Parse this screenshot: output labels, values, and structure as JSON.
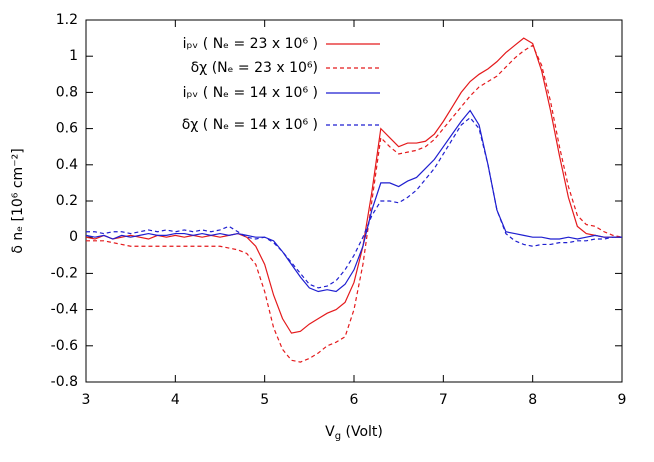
{
  "chart_data": {
    "type": "line",
    "ylabel": "δ nₑ [10⁶ cm⁻²]",
    "xlabel": {
      "main": "V",
      "sub": "g",
      "rest": " (Volt)"
    },
    "xlim": [
      3,
      9
    ],
    "ylim": [
      -0.8,
      1.2
    ],
    "xticks": [
      3,
      4,
      5,
      6,
      7,
      8,
      9
    ],
    "yticks": [
      -0.8,
      -0.6,
      -0.4,
      -0.2,
      0,
      0.2,
      0.4,
      0.6,
      0.8,
      1,
      1.2
    ],
    "grid": false,
    "legend": "top-left",
    "x": [
      3.0,
      3.1,
      3.2,
      3.3,
      3.4,
      3.5,
      3.6,
      3.7,
      3.8,
      3.9,
      4.0,
      4.1,
      4.2,
      4.3,
      4.4,
      4.5,
      4.6,
      4.7,
      4.8,
      4.9,
      5.0,
      5.1,
      5.2,
      5.3,
      5.4,
      5.5,
      5.6,
      5.7,
      5.8,
      5.9,
      6.0,
      6.1,
      6.2,
      6.3,
      6.4,
      6.5,
      6.6,
      6.7,
      6.8,
      6.9,
      7.0,
      7.1,
      7.2,
      7.3,
      7.4,
      7.5,
      7.6,
      7.7,
      7.8,
      7.9,
      8.0,
      8.1,
      8.2,
      8.3,
      8.4,
      8.5,
      8.6,
      8.7,
      8.8,
      8.9,
      9.0
    ],
    "series": [
      {
        "name": "iₚᵥ ( Nₑ = 23 x 10⁶ )",
        "color": "#e41a1c",
        "dash": false,
        "values": [
          0,
          -0.01,
          0.01,
          -0.01,
          0,
          0.01,
          0,
          -0.01,
          0.01,
          0,
          0.01,
          0,
          0.01,
          0,
          0.01,
          0,
          0.01,
          0.02,
          0,
          -0.05,
          -0.15,
          -0.32,
          -0.45,
          -0.53,
          -0.52,
          -0.48,
          -0.45,
          -0.42,
          -0.4,
          -0.36,
          -0.25,
          -0.05,
          0.25,
          0.6,
          0.55,
          0.5,
          0.52,
          0.52,
          0.53,
          0.57,
          0.64,
          0.72,
          0.8,
          0.86,
          0.9,
          0.93,
          0.97,
          1.02,
          1.06,
          1.1,
          1.07,
          0.92,
          0.7,
          0.45,
          0.22,
          0.06,
          0.02,
          0.01,
          0,
          0,
          0
        ]
      },
      {
        "name": "δχ  (Nₑ = 23 x 10⁶)",
        "color": "#e41a1c",
        "dash": true,
        "values": [
          -0.02,
          -0.02,
          -0.02,
          -0.03,
          -0.04,
          -0.05,
          -0.05,
          -0.05,
          -0.05,
          -0.05,
          -0.05,
          -0.05,
          -0.05,
          -0.05,
          -0.05,
          -0.05,
          -0.06,
          -0.07,
          -0.09,
          -0.15,
          -0.3,
          -0.5,
          -0.62,
          -0.68,
          -0.69,
          -0.67,
          -0.64,
          -0.6,
          -0.58,
          -0.55,
          -0.4,
          -0.15,
          0.2,
          0.55,
          0.5,
          0.46,
          0.47,
          0.48,
          0.5,
          0.54,
          0.6,
          0.66,
          0.72,
          0.78,
          0.83,
          0.86,
          0.89,
          0.94,
          0.99,
          1.03,
          1.06,
          0.95,
          0.75,
          0.5,
          0.28,
          0.12,
          0.07,
          0.06,
          0.03,
          0.01,
          0
        ]
      },
      {
        "name": "iₚᵥ ( Nₑ = 14 x 10⁶ )",
        "color": "#1f1fd0",
        "dash": false,
        "values": [
          0.01,
          0,
          0.01,
          -0.01,
          0.01,
          0,
          0.01,
          0.02,
          0.01,
          0.01,
          0.02,
          0.02,
          0.01,
          0.02,
          0.01,
          0.02,
          0.01,
          0.02,
          0.01,
          0,
          0,
          -0.02,
          -0.08,
          -0.15,
          -0.22,
          -0.28,
          -0.3,
          -0.29,
          -0.3,
          -0.26,
          -0.18,
          -0.05,
          0.15,
          0.3,
          0.3,
          0.28,
          0.31,
          0.33,
          0.38,
          0.43,
          0.5,
          0.57,
          0.64,
          0.7,
          0.62,
          0.4,
          0.15,
          0.03,
          0.02,
          0.01,
          0,
          0,
          -0.01,
          -0.01,
          0,
          -0.01,
          0,
          0.01,
          0,
          0,
          0
        ]
      },
      {
        "name": "δχ  ( Nₑ = 14 x 10⁶ )",
        "color": "#1f1fd0",
        "dash": true,
        "values": [
          0.03,
          0.03,
          0.02,
          0.03,
          0.03,
          0.02,
          0.03,
          0.04,
          0.03,
          0.04,
          0.03,
          0.04,
          0.03,
          0.04,
          0.03,
          0.04,
          0.06,
          0.03,
          0,
          -0.01,
          0,
          -0.03,
          -0.08,
          -0.14,
          -0.2,
          -0.26,
          -0.28,
          -0.27,
          -0.24,
          -0.18,
          -0.1,
          0,
          0.12,
          0.2,
          0.2,
          0.19,
          0.22,
          0.26,
          0.32,
          0.38,
          0.46,
          0.54,
          0.62,
          0.66,
          0.6,
          0.4,
          0.15,
          0.02,
          -0.02,
          -0.04,
          -0.05,
          -0.04,
          -0.04,
          -0.03,
          -0.03,
          -0.02,
          -0.02,
          -0.01,
          -0.01,
          0,
          0
        ]
      }
    ]
  }
}
